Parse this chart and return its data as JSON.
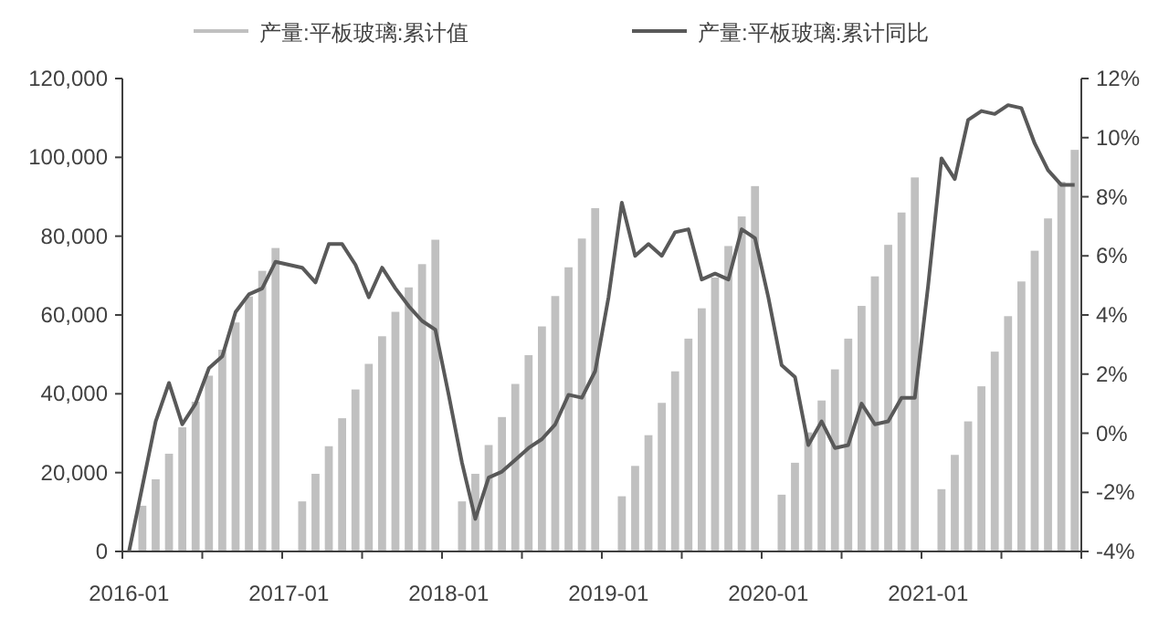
{
  "chart_data": {
    "type": "bar",
    "legend": "top",
    "grid": false,
    "categories": [
      "2016-01",
      null,
      null,
      null,
      null,
      null,
      null,
      null,
      null,
      null,
      null,
      null,
      "2017-01",
      null,
      null,
      null,
      null,
      null,
      null,
      null,
      null,
      null,
      null,
      null,
      "2018-01",
      null,
      null,
      null,
      null,
      null,
      null,
      null,
      null,
      null,
      null,
      null,
      "2019-01",
      null,
      null,
      null,
      null,
      null,
      null,
      null,
      null,
      null,
      null,
      null,
      "2020-01",
      null,
      null,
      null,
      null,
      null,
      null,
      null,
      null,
      null,
      null,
      null,
      "2021-01",
      null,
      null,
      null,
      null,
      null,
      null,
      null,
      null,
      null,
      null,
      null
    ],
    "ylim": [
      0,
      120000
    ],
    "yticks": [
      0,
      {
        "value": 20000,
        "label": "20,000"
      },
      {
        "value": 40000,
        "label": "40,000"
      },
      {
        "value": 60000,
        "label": "60,000"
      },
      {
        "value": 80000,
        "label": "80,000"
      },
      {
        "value": 100000,
        "label": "100,000"
      },
      {
        "value": 120000,
        "label": "120,000"
      }
    ],
    "y2lim": [
      -4,
      12
    ],
    "y2ticks": [
      {
        "value": -4,
        "label": "-4%"
      },
      {
        "value": -2,
        "label": "-2%"
      },
      {
        "value": 0,
        "label": "0%"
      },
      {
        "value": 2,
        "label": "2%"
      },
      {
        "value": 4,
        "label": "4%"
      },
      {
        "value": 6,
        "label": "6%"
      },
      {
        "value": 8,
        "label": "8%"
      },
      {
        "value": 10,
        "label": "10%"
      },
      {
        "value": 12,
        "label": "12%"
      }
    ],
    "series": [
      {
        "name": "产量:平板玻璃:累计值",
        "color": "#c0c0c0",
        "values": [
          null,
          11600,
          18300,
          24800,
          31500,
          38000,
          44600,
          51200,
          58100,
          64700,
          71200,
          77000,
          null,
          12700,
          19700,
          26700,
          33800,
          41100,
          47600,
          54600,
          60800,
          67000,
          72900,
          79100,
          null,
          12700,
          19700,
          27000,
          34100,
          42500,
          49800,
          57100,
          64800,
          72100,
          79400,
          87100,
          null,
          14000,
          21700,
          29500,
          37700,
          45700,
          54000,
          61700,
          69500,
          77500,
          85000,
          92700,
          null,
          14400,
          22500,
          30200,
          38300,
          46200,
          54000,
          62300,
          69800,
          77800,
          86000,
          94900,
          null,
          15800,
          24500,
          33000,
          41900,
          50700,
          59700,
          68500,
          76300,
          84500,
          93800,
          101900
        ]
      },
      {
        "name": "产量:平板玻璃:累计同比",
        "type": "line",
        "axis": "y2",
        "color": "#595959",
        "values": [
          -4.0,
          -1.8,
          0.4,
          1.7,
          0.3,
          1.0,
          2.2,
          2.6,
          4.1,
          4.7,
          4.9,
          5.8,
          5.7,
          5.6,
          5.1,
          6.4,
          6.4,
          5.7,
          4.6,
          5.6,
          4.9,
          4.3,
          3.8,
          3.5,
          1.3,
          -1.0,
          -2.9,
          -1.5,
          -1.3,
          -0.9,
          -0.5,
          -0.2,
          0.3,
          1.3,
          1.2,
          2.1,
          4.6,
          7.8,
          6.0,
          6.4,
          6.0,
          6.8,
          6.9,
          5.2,
          5.4,
          5.2,
          6.9,
          6.6,
          4.6,
          2.3,
          1.9,
          -0.4,
          0.4,
          -0.5,
          -0.4,
          1.0,
          0.3,
          0.4,
          1.2,
          1.2,
          5.0,
          9.3,
          8.6,
          10.6,
          10.9,
          10.8,
          11.1,
          11.0,
          9.8,
          8.9,
          8.4,
          8.4
        ]
      }
    ]
  }
}
